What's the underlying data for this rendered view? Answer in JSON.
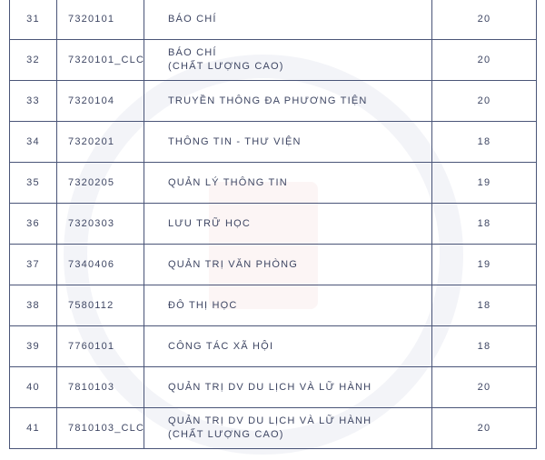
{
  "rows": [
    {
      "stt": "31",
      "code": "7320101",
      "name": [
        "BÁO CHÍ"
      ],
      "score": "20"
    },
    {
      "stt": "32",
      "code": "7320101_CLC",
      "name": [
        "BÁO CHÍ",
        "(CHẤT LƯỢNG CAO)"
      ],
      "score": "20"
    },
    {
      "stt": "33",
      "code": "7320104",
      "name": [
        "TRUYỀN THÔNG ĐA PHƯƠNG TIỆN"
      ],
      "score": "20"
    },
    {
      "stt": "34",
      "code": "7320201",
      "name": [
        "THÔNG TIN - THƯ VIỆN"
      ],
      "score": "18"
    },
    {
      "stt": "35",
      "code": "7320205",
      "name": [
        "QUẢN LÝ THÔNG TIN"
      ],
      "score": "19"
    },
    {
      "stt": "36",
      "code": "7320303",
      "name": [
        "LƯU TRỮ HỌC"
      ],
      "score": "18"
    },
    {
      "stt": "37",
      "code": "7340406",
      "name": [
        "QUẢN TRỊ VĂN PHÒNG"
      ],
      "score": "19"
    },
    {
      "stt": "38",
      "code": "7580112",
      "name": [
        "ĐÔ THỊ HỌC"
      ],
      "score": "18"
    },
    {
      "stt": "39",
      "code": "7760101",
      "name": [
        "CÔNG TÁC XÃ HỘI"
      ],
      "score": "18"
    },
    {
      "stt": "40",
      "code": "7810103",
      "name": [
        "QUẢN TRỊ DV DU LỊCH VÀ LỮ HÀNH"
      ],
      "score": "20"
    },
    {
      "stt": "41",
      "code": "7810103_CLC",
      "name": [
        "QUẢN TRỊ DV DU LỊCH VÀ LỮ HÀNH",
        "(CHẤT LƯỢNG CAO)"
      ],
      "score": "20"
    }
  ],
  "colors": {
    "border": "#4a5578",
    "text": "#3e4663"
  }
}
